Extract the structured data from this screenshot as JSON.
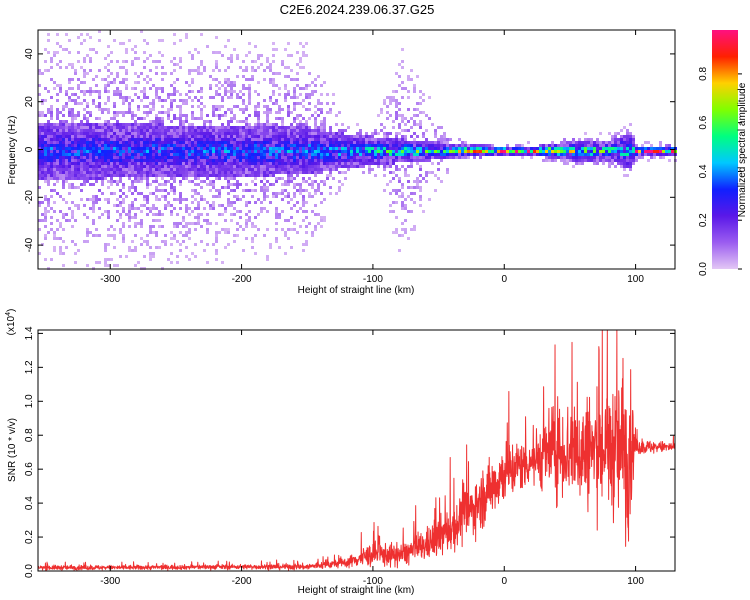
{
  "title": "C2E6.2024.239.06.37.G25",
  "colorbar": {
    "label": "Normalized spectral amplitude",
    "ticks": [
      "0.0",
      "0.2",
      "0.4",
      "0.6",
      "0.8"
    ],
    "tick_values": [
      0.0,
      0.2,
      0.4,
      0.6,
      0.8
    ],
    "range": [
      0.0,
      0.98
    ]
  },
  "chart_data": [
    {
      "type": "heatmap",
      "name": "spectrogram",
      "xlabel": "Height of straight line (km)",
      "ylabel": "Frequency (Hz)",
      "xlim": [
        -355,
        130
      ],
      "ylim": [
        -50,
        50
      ],
      "xticks": [
        -300,
        -200,
        -100,
        0,
        100
      ],
      "xtick_labels": [
        "-300",
        "-200",
        "-100",
        "0",
        "100"
      ],
      "yticks": [
        -40,
        -20,
        0,
        20,
        40
      ],
      "ytick_labels": [
        "-40",
        "-20",
        "0",
        "20",
        "40"
      ],
      "colormap": [
        "#e3c7f5",
        "#9b5df0",
        "#5a18e8",
        "#1020ff",
        "#00c8ff",
        "#00ff80",
        "#80ff00",
        "#ffd000",
        "#ff2000",
        "#ff1080"
      ],
      "profile": [
        {
          "x": -355,
          "halfwidth_hz": 12,
          "outer_scatter_hz": 50,
          "peak": 0.2
        },
        {
          "x": -250,
          "halfwidth_hz": 11,
          "outer_scatter_hz": 50,
          "peak": 0.22
        },
        {
          "x": -150,
          "halfwidth_hz": 10,
          "outer_scatter_hz": 45,
          "peak": 0.25
        },
        {
          "x": -120,
          "halfwidth_hz": 7,
          "outer_scatter_hz": 12,
          "peak": 0.3
        },
        {
          "x": -100,
          "halfwidth_hz": 6,
          "outer_scatter_hz": 10,
          "peak": 0.35
        },
        {
          "x": -80,
          "halfwidth_hz": 5,
          "outer_scatter_hz": 45,
          "peak": 0.45
        },
        {
          "x": -40,
          "halfwidth_hz": 3,
          "outer_scatter_hz": 6,
          "peak": 0.55
        },
        {
          "x": 0,
          "halfwidth_hz": 2,
          "outer_scatter_hz": 3,
          "peak": 0.95
        },
        {
          "x": 20,
          "halfwidth_hz": 2,
          "outer_scatter_hz": 4,
          "peak": 0.85
        },
        {
          "x": 50,
          "halfwidth_hz": 4,
          "outer_scatter_hz": 7,
          "peak": 0.55
        },
        {
          "x": 80,
          "halfwidth_hz": 4,
          "outer_scatter_hz": 8,
          "peak": 0.45
        },
        {
          "x": 95,
          "halfwidth_hz": 8,
          "outer_scatter_hz": 12,
          "peak": 0.4
        },
        {
          "x": 100,
          "halfwidth_hz": 2,
          "outer_scatter_hz": 5,
          "peak": 0.95
        },
        {
          "x": 130,
          "halfwidth_hz": 2,
          "outer_scatter_hz": 5,
          "peak": 0.9
        }
      ]
    },
    {
      "type": "line",
      "name": "snr",
      "xlabel": "Height of straight line (km)",
      "ylabel": "SNR (10 * v/v)",
      "y_multiplier": "(x10",
      "y_multiplier_exp": "4",
      "y_multiplier_close": ")",
      "color": "#ee3030",
      "xlim": [
        -355,
        130
      ],
      "ylim": [
        0.0,
        1.42
      ],
      "xticks": [
        -300,
        -200,
        -100,
        0,
        100
      ],
      "xtick_labels": [
        "-300",
        "-200",
        "-100",
        "0",
        "100"
      ],
      "yticks": [
        0.0,
        0.2,
        0.4,
        0.6,
        0.8,
        1.0,
        1.2,
        1.4
      ],
      "ytick_labels": [
        "0.0",
        "0.2",
        "0.4",
        "0.6",
        "0.8",
        "1.0",
        "1.2",
        "1.4"
      ],
      "envelope": [
        {
          "x": -355,
          "mean": 0.02,
          "amp": 0.015
        },
        {
          "x": -300,
          "mean": 0.02,
          "amp": 0.015
        },
        {
          "x": -200,
          "mean": 0.025,
          "amp": 0.015
        },
        {
          "x": -150,
          "mean": 0.025,
          "amp": 0.02
        },
        {
          "x": -120,
          "mean": 0.05,
          "amp": 0.03
        },
        {
          "x": -100,
          "mean": 0.1,
          "amp": 0.08
        },
        {
          "x": -80,
          "mean": 0.09,
          "amp": 0.07
        },
        {
          "x": -60,
          "mean": 0.15,
          "amp": 0.1
        },
        {
          "x": -40,
          "mean": 0.25,
          "amp": 0.15
        },
        {
          "x": -20,
          "mean": 0.4,
          "amp": 0.18
        },
        {
          "x": 0,
          "mean": 0.58,
          "amp": 0.2
        },
        {
          "x": 20,
          "mean": 0.65,
          "amp": 0.15
        },
        {
          "x": 40,
          "mean": 0.72,
          "amp": 0.3
        },
        {
          "x": 60,
          "mean": 0.7,
          "amp": 0.35
        },
        {
          "x": 80,
          "mean": 0.72,
          "amp": 0.4
        },
        {
          "x": 95,
          "mean": 0.72,
          "amp": 0.55
        },
        {
          "x": 100,
          "mean": 0.73,
          "amp": 0.05
        },
        {
          "x": 130,
          "mean": 0.73,
          "amp": 0.03
        }
      ]
    }
  ]
}
